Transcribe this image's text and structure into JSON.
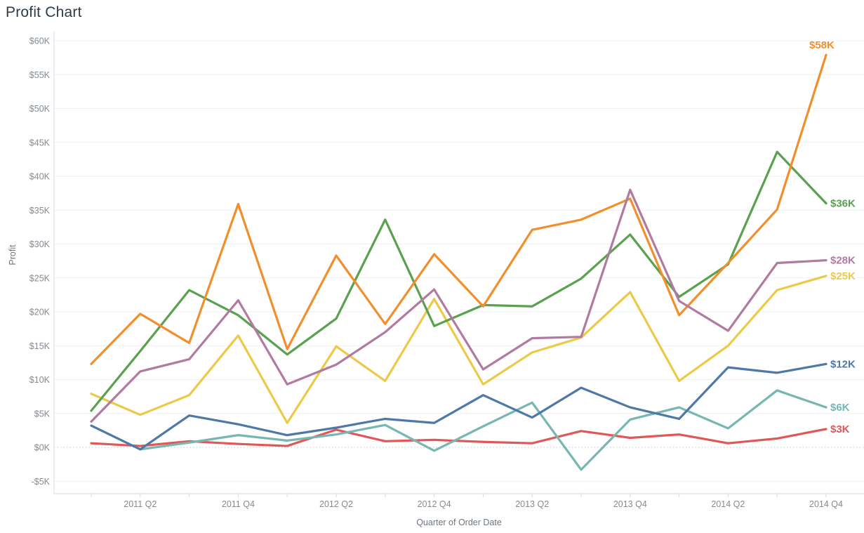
{
  "page": {
    "title": "Profit Chart"
  },
  "chart_data": {
    "type": "line",
    "title": "Profit Chart",
    "xlabel": "Quarter of Order Date",
    "ylabel": "Profit",
    "ylim": [
      -5,
      60
    ],
    "grid": "horizontal gridlines every $5K, dotted line at $0K, legend none, series end labels at right",
    "categories": [
      "2011 Q1",
      "2011 Q2",
      "2011 Q3",
      "2011 Q4",
      "2012 Q1",
      "2012 Q2",
      "2012 Q3",
      "2012 Q4",
      "2013 Q1",
      "2013 Q2",
      "2013 Q3",
      "2013 Q4",
      "2014 Q1",
      "2014 Q2",
      "2014 Q3",
      "2014 Q4"
    ],
    "x_axis_tick_labels": [
      {
        "index": 1,
        "label": "2011 Q2"
      },
      {
        "index": 3,
        "label": "2011 Q4"
      },
      {
        "index": 5,
        "label": "2012 Q2"
      },
      {
        "index": 7,
        "label": "2012 Q4"
      },
      {
        "index": 9,
        "label": "2013 Q2"
      },
      {
        "index": 11,
        "label": "2013 Q4"
      },
      {
        "index": 13,
        "label": "2014 Q2"
      },
      {
        "index": 15,
        "label": "2014 Q4"
      }
    ],
    "y_ticks": [
      {
        "value": 60,
        "label": "$60K"
      },
      {
        "value": 55,
        "label": "$55K"
      },
      {
        "value": 50,
        "label": "$50K"
      },
      {
        "value": 45,
        "label": "$45K"
      },
      {
        "value": 40,
        "label": "$40K"
      },
      {
        "value": 35,
        "label": "$35K"
      },
      {
        "value": 30,
        "label": "$30K"
      },
      {
        "value": 25,
        "label": "$25K"
      },
      {
        "value": 20,
        "label": "$20K"
      },
      {
        "value": 15,
        "label": "$15K"
      },
      {
        "value": 10,
        "label": "$10K"
      },
      {
        "value": 5,
        "label": "$5K"
      },
      {
        "value": 0,
        "label": "$0K"
      },
      {
        "value": -5,
        "label": "-$5K"
      }
    ],
    "series": [
      {
        "id": "orange-series",
        "color": "#F28E2B",
        "end_label": "$58K",
        "values": [
          12.3,
          19.7,
          15.4,
          35.9,
          14.5,
          28.3,
          18.2,
          28.5,
          20.8,
          32.1,
          33.6,
          36.7,
          19.5,
          27.2,
          35.1,
          57.9
        ]
      },
      {
        "id": "green-series",
        "color": "#59A14F",
        "end_label": "$36K",
        "values": [
          5.4,
          14.2,
          23.2,
          19.5,
          13.7,
          19.0,
          33.6,
          17.9,
          21.0,
          20.8,
          24.9,
          31.4,
          22.2,
          27.0,
          43.6,
          36.0
        ]
      },
      {
        "id": "purple-series",
        "color": "#B07AA1",
        "end_label": "$28K",
        "values": [
          3.8,
          11.2,
          13.0,
          21.7,
          9.3,
          12.2,
          17.0,
          23.3,
          11.5,
          16.1,
          16.3,
          38.0,
          21.6,
          17.2,
          27.2,
          27.6
        ]
      },
      {
        "id": "yellow-series",
        "color": "#EDC948",
        "end_label": "$25K",
        "values": [
          7.9,
          4.8,
          7.7,
          16.5,
          3.6,
          14.9,
          9.8,
          21.9,
          9.3,
          14.0,
          16.2,
          22.9,
          9.8,
          15.0,
          23.2,
          25.3
        ]
      },
      {
        "id": "blue-series",
        "color": "#4E79A7",
        "end_label": "$12K",
        "values": [
          3.2,
          -0.3,
          4.7,
          3.4,
          1.8,
          2.9,
          4.2,
          3.6,
          7.7,
          4.4,
          8.8,
          5.9,
          4.2,
          11.8,
          11.0,
          12.3
        ]
      },
      {
        "id": "teal-series",
        "color": "#76B7B2",
        "end_label": "$6K",
        "values": [
          null,
          -0.3,
          0.7,
          1.8,
          1.0,
          1.9,
          3.3,
          -0.5,
          3.1,
          6.6,
          -3.3,
          4.1,
          5.9,
          2.8,
          8.4,
          5.9
        ]
      },
      {
        "id": "red-series",
        "color": "#E15759",
        "end_label": "$3K",
        "values": [
          0.6,
          0.2,
          0.9,
          0.5,
          0.2,
          2.6,
          0.9,
          1.1,
          0.8,
          0.6,
          2.4,
          1.4,
          1.9,
          0.6,
          1.3,
          2.7
        ]
      }
    ]
  }
}
